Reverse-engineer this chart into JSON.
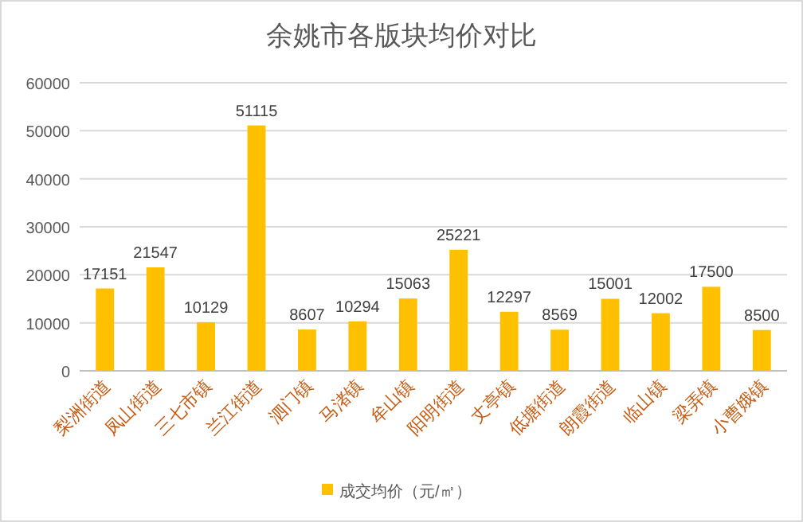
{
  "chart_data": {
    "type": "bar",
    "title": "余姚市各版块均价对比",
    "categories": [
      "梨洲街道",
      "凤山街道",
      "三七市镇",
      "兰江街道",
      "泗门镇",
      "马渚镇",
      "牟山镇",
      "阳明街道",
      "丈亭镇",
      "低塘街道",
      "朗霞街道",
      "临山镇",
      "梁弄镇",
      "小曹娥镇"
    ],
    "series": [
      {
        "name": "成交均价（元/㎡）",
        "color": "#ffc000",
        "values": [
          17151,
          21547,
          10129,
          51115,
          8607,
          10294,
          15063,
          25221,
          12297,
          8569,
          15001,
          12002,
          17500,
          8500
        ]
      }
    ],
    "ylim": [
      0,
      60000
    ],
    "yticks": [
      0,
      10000,
      20000,
      30000,
      40000,
      50000,
      60000
    ],
    "grid": "y",
    "data_labels": true,
    "legend": "bottom"
  }
}
